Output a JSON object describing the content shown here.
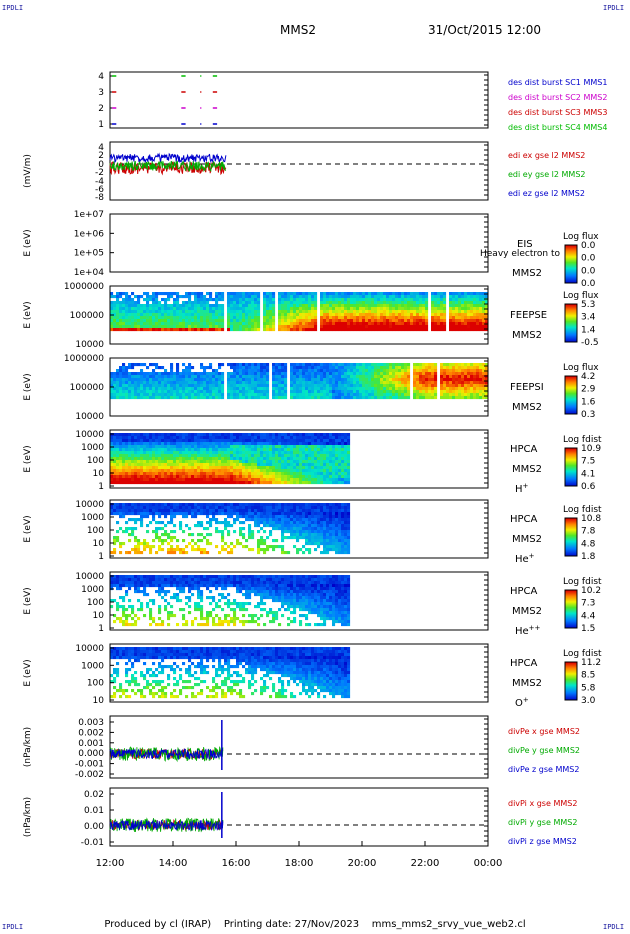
{
  "header": {
    "title": "MMS2",
    "datetime": "31/Oct/2015 12:00",
    "corner_tl": "IPDLI",
    "corner_tr": "IPDLI",
    "corner_bl": "IPDLI",
    "corner_br": "IPDLI"
  },
  "footer": {
    "text": "Produced by cl (IRAP)    Printing date: 27/Nov/2023    mms_mms2_srvy_vue_web2.cl"
  },
  "chart_data": {
    "type": "multi-panel time series",
    "x_range": [
      "12:00",
      "00:00"
    ],
    "x_ticks": [
      "12:00",
      "14:00",
      "16:00",
      "18:00",
      "20:00",
      "22:00",
      "00:00"
    ],
    "panels": [
      {
        "id": "burst",
        "yticks": [
          "4",
          "3",
          "2",
          "1"
        ],
        "legend": [
          {
            "text": "des dist burst SC1 MMS1",
            "color": "#0000cc"
          },
          {
            "text": "des dist burst SC2 MMS2",
            "color": "#cc00cc"
          },
          {
            "text": "des dist burst SC3 MMS3",
            "color": "#cc0000"
          },
          {
            "text": "des dist burst SC4 MMS4",
            "color": "#00bb00"
          }
        ],
        "intervals_hours": [
          [
            0.0,
            0.2
          ],
          [
            2.2,
            2.4
          ],
          [
            2.8,
            2.9
          ],
          [
            3.2,
            3.4
          ]
        ]
      },
      {
        "id": "efield",
        "ylabel": "(mV/m)",
        "yticks": [
          "4",
          "2",
          "0",
          "-2",
          "-4",
          "-6",
          "-8"
        ],
        "legend": [
          {
            "text": "edi ex gse l2 MMS2",
            "color": "#cc0000"
          },
          {
            "text": "edi ey gse l2 MMS2",
            "color": "#00aa00"
          },
          {
            "text": "edi ez gse l2 MMS2",
            "color": "#0000cc"
          }
        ]
      },
      {
        "id": "eis",
        "ylabel": "E (eV)",
        "yticks": [
          "1e+07",
          "1e+06",
          "1e+05",
          "1e+04"
        ],
        "inst": "EIS",
        "note": "Heavy electron to",
        "sc": "MMS2",
        "cb_title": "Log flux",
        "cb_ticks": [
          "0.0",
          "0.0",
          "0.0",
          "0.0"
        ]
      },
      {
        "id": "feepse",
        "ylabel": "E (eV)",
        "yticks": [
          "1000000",
          "100000",
          "10000"
        ],
        "inst": "FEEPSE",
        "sc": "MMS2",
        "cb_title": "Log flux",
        "cb_ticks": [
          "5.3",
          "3.4",
          "1.4",
          "-0.5"
        ]
      },
      {
        "id": "feepsi",
        "ylabel": "E (eV)",
        "yticks": [
          "1000000",
          "100000",
          "10000"
        ],
        "inst": "FEEPSI",
        "sc": "MMS2",
        "cb_title": "Log flux",
        "cb_ticks": [
          "4.2",
          "2.9",
          "1.6",
          "0.3"
        ]
      },
      {
        "id": "hpca_h",
        "ylabel": "E (eV)",
        "yticks": [
          "10000",
          "1000",
          "100",
          "10",
          "1"
        ],
        "inst": "HPCA",
        "sc": "MMS2",
        "species": "H",
        "sup": "+",
        "cb_title": "Log fdist",
        "cb_ticks": [
          "10.9",
          "7.5",
          "4.1",
          "0.6"
        ]
      },
      {
        "id": "hpca_he",
        "ylabel": "E (eV)",
        "yticks": [
          "10000",
          "1000",
          "100",
          "10",
          "1"
        ],
        "inst": "HPCA",
        "sc": "MMS2",
        "species": "He",
        "sup": "+",
        "cb_title": "Log fdist",
        "cb_ticks": [
          "10.8",
          "7.8",
          "4.8",
          "1.8"
        ]
      },
      {
        "id": "hpca_he2",
        "ylabel": "E (eV)",
        "yticks": [
          "10000",
          "1000",
          "100",
          "10",
          "1"
        ],
        "inst": "HPCA",
        "sc": "MMS2",
        "species": "He",
        "sup": "++",
        "cb_title": "Log fdist",
        "cb_ticks": [
          "10.2",
          "7.3",
          "4.4",
          "1.5"
        ]
      },
      {
        "id": "hpca_o",
        "ylabel": "E (eV)",
        "yticks": [
          "10000",
          "1000",
          "100",
          "10"
        ],
        "inst": "HPCA",
        "sc": "MMS2",
        "species": "O",
        "sup": "+",
        "cb_title": "Log fdist",
        "cb_ticks": [
          "11.2",
          "8.5",
          "5.8",
          "3.0"
        ]
      },
      {
        "id": "divpe",
        "ylabel": "(nPa/km)",
        "yticks": [
          "0.003",
          "0.002",
          "0.001",
          "0.000",
          "-0.001",
          "-0.002"
        ],
        "legend": [
          {
            "text": "divPe x gse MMS2",
            "color": "#cc0000"
          },
          {
            "text": "divPe y gse MMS2",
            "color": "#00aa00"
          },
          {
            "text": "divPe z gse MMS2",
            "color": "#0000cc"
          }
        ]
      },
      {
        "id": "divpi",
        "ylabel": "(nPa/km)",
        "yticks": [
          "0.02",
          "0.01",
          "0.00",
          "-0.01"
        ],
        "legend": [
          {
            "text": "divPi x gse MMS2",
            "color": "#cc0000"
          },
          {
            "text": "divPi y gse MMS2",
            "color": "#00aa00"
          },
          {
            "text": "divPi z gse MMS2",
            "color": "#0000cc"
          }
        ]
      }
    ]
  }
}
